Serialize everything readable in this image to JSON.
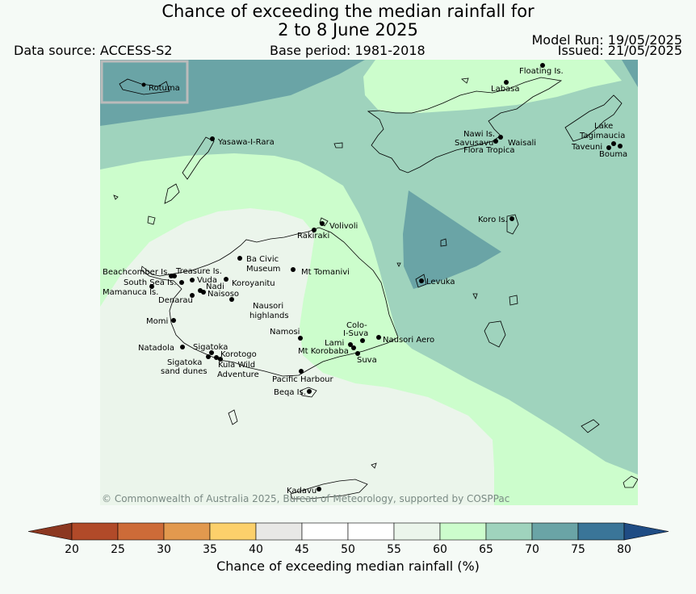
{
  "header": {
    "title_line1": "Chance of exceeding the median rainfall for",
    "title_line2": "2 to 8 June 2025",
    "data_source": "Data source: ACCESS-S2",
    "base_period": "Base period: 1981-2018",
    "model_run": "Model Run: 19/05/2025",
    "issued": "Issued: 21/05/2025"
  },
  "map": {
    "inset_label": "Rotuma",
    "copyright": "© Commonwealth of Australia 2025, Bureau of Meteorology, supported by COSPPac",
    "places": [
      "Floating Is.",
      "Labasa",
      "Yasawa-I-Rara",
      "Nawi Is.",
      "Savusavu",
      "Waisali",
      "Flora Tropica",
      "Lake",
      "Tagimaucia",
      "Taveuni",
      "Bouma",
      "Koro Is.",
      "Volivoli",
      "Rakiraki",
      "Beachcomber Is.",
      "Treasure Is.",
      "Ba Civic",
      "Museum",
      "Mt Tomanivi",
      "South Sea Is.",
      "Vuda",
      "Koroyanitu",
      "Nadi",
      "Mamanuca Is.",
      "Naisoso",
      "Denarau",
      "Nausori",
      "highlands",
      "Levuka",
      "Momi",
      "Colo-",
      "I-Suva",
      "Namosi",
      "Nausori Aero",
      "Natadola",
      "Sigatoka",
      "Lami",
      "Korotogo",
      "Mt Korobaba",
      "Suva",
      "Kula Wild",
      "Adventure",
      "sand dunes",
      "Pacific Harbour",
      "Beqa Is.",
      "Kadavu"
    ]
  },
  "colorbar": {
    "title": "Chance of exceeding median rainfall (%)",
    "ticks": [
      "20",
      "25",
      "30",
      "35",
      "40",
      "45",
      "50",
      "55",
      "60",
      "65",
      "70",
      "75",
      "80"
    ],
    "bins": [
      {
        "range": "20-25",
        "color": "#b14a29"
      },
      {
        "range": "25-30",
        "color": "#cd6b38"
      },
      {
        "range": "30-35",
        "color": "#e2994e"
      },
      {
        "range": "35-40",
        "color": "#fcd06b"
      },
      {
        "range": "40-45",
        "color": "#e8e8e6"
      },
      {
        "range": "45-50",
        "color": "#ffffff"
      },
      {
        "range": "50-55",
        "color": "#ffffff"
      },
      {
        "range": "55-60",
        "color": "#ebf5eb"
      },
      {
        "range": "60-65",
        "color": "#ccfdcc"
      },
      {
        "range": "65-70",
        "color": "#9fd3bd"
      },
      {
        "range": "70-75",
        "color": "#6aa4a6"
      },
      {
        "range": "75-80",
        "color": "#3a7598"
      }
    ],
    "under_color": "#8c3821",
    "over_color": "#1f4c84"
  }
}
